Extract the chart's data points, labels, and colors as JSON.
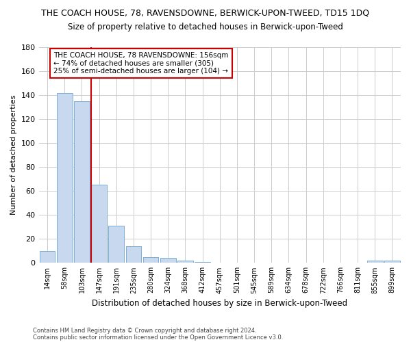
{
  "title": "THE COACH HOUSE, 78, RAVENSDOWNE, BERWICK-UPON-TWEED, TD15 1DQ",
  "subtitle": "Size of property relative to detached houses in Berwick-upon-Tweed",
  "xlabel": "Distribution of detached houses by size in Berwick-upon-Tweed",
  "ylabel": "Number of detached properties",
  "footnote1": "Contains HM Land Registry data © Crown copyright and database right 2024.",
  "footnote2": "Contains public sector information licensed under the Open Government Licence v3.0.",
  "categories": [
    "14sqm",
    "58sqm",
    "103sqm",
    "147sqm",
    "191sqm",
    "235sqm",
    "280sqm",
    "324sqm",
    "368sqm",
    "412sqm",
    "457sqm",
    "501sqm",
    "545sqm",
    "589sqm",
    "634sqm",
    "678sqm",
    "722sqm",
    "766sqm",
    "811sqm",
    "855sqm",
    "899sqm"
  ],
  "values": [
    10,
    142,
    135,
    65,
    31,
    14,
    5,
    4,
    2,
    1,
    0,
    0,
    0,
    0,
    0,
    0,
    0,
    0,
    0,
    2,
    2
  ],
  "bar_color": "#c8d8ef",
  "bar_edge_color": "#7aaed4",
  "grid_color": "#cccccc",
  "bg_color": "#ffffff",
  "axes_bg_color": "#ffffff",
  "vline_x_idx": 3,
  "vline_color": "#cc0000",
  "annotation_line1": "THE COACH HOUSE, 78 RAVENSDOWNE: 156sqm",
  "annotation_line2": "← 74% of detached houses are smaller (305)",
  "annotation_line3": "25% of semi-detached houses are larger (104) →",
  "annotation_box_color": "#cc0000",
  "ylim": [
    0,
    180
  ],
  "yticks": [
    0,
    20,
    40,
    60,
    80,
    100,
    120,
    140,
    160,
    180
  ],
  "title_fontsize": 9,
  "subtitle_fontsize": 8.5
}
